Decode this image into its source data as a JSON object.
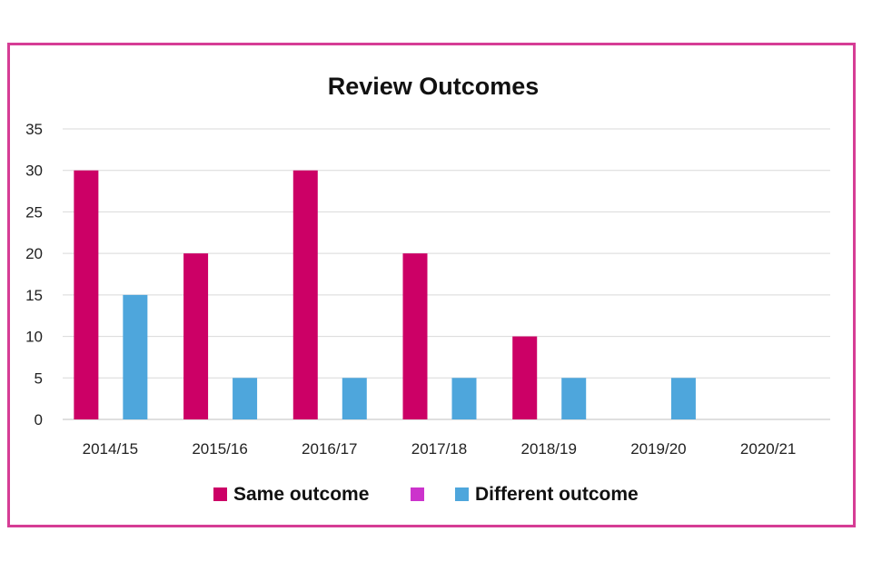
{
  "chart_data": {
    "type": "bar",
    "title": "Review Outcomes",
    "categories": [
      "2014/15",
      "2015/16",
      "2016/17",
      "2017/18",
      "2018/19",
      "2019/20",
      "2020/21"
    ],
    "series": [
      {
        "name": "Same outcome",
        "color": "#cc0066",
        "values": [
          30,
          20,
          30,
          20,
          10,
          0,
          0
        ]
      },
      {
        "name": "",
        "color": "#cc33cc",
        "values": [
          0,
          0,
          0,
          0,
          0,
          0,
          0
        ]
      },
      {
        "name": "Different outcome",
        "color": "#4ea6dc",
        "values": [
          15,
          5,
          5,
          5,
          5,
          5,
          0
        ]
      }
    ],
    "ylim": [
      0,
      35
    ],
    "yticks": [
      0,
      5,
      10,
      15,
      20,
      25,
      30,
      35
    ],
    "xlabel": "",
    "ylabel": "",
    "grid": true,
    "legend_position": "bottom"
  }
}
